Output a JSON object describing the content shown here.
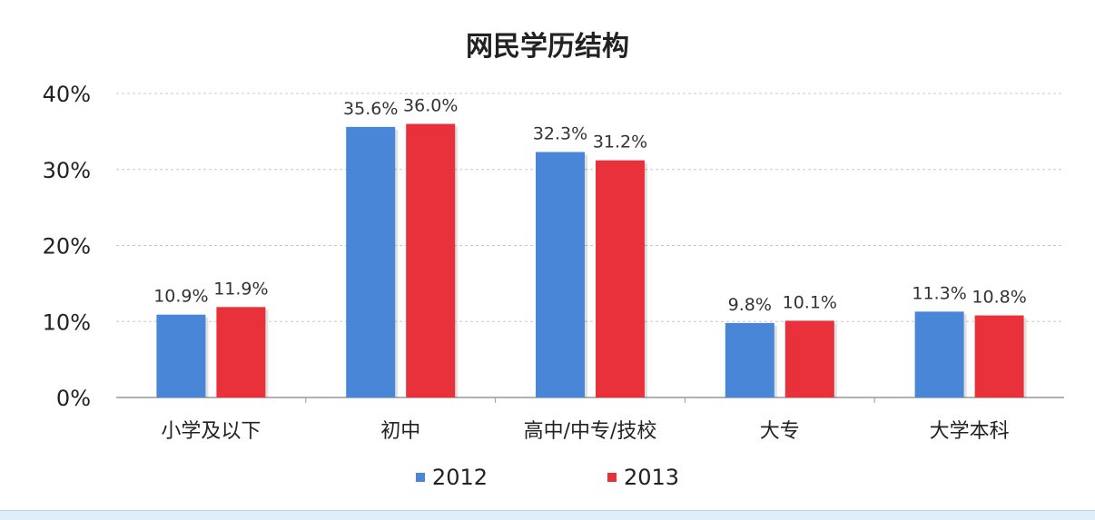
{
  "chart_data": {
    "type": "bar",
    "title": "网民学历结构",
    "categories": [
      "小学及以下",
      "初中",
      "高中/中专/技校",
      "大专",
      "大学本科"
    ],
    "series": [
      {
        "name": "2012",
        "values": [
          10.9,
          35.6,
          32.3,
          9.8,
          11.3
        ],
        "labels": [
          "10.9%",
          "35.6%",
          "32.3%",
          "9.8%",
          "11.3%"
        ],
        "color": "#4a86d8"
      },
      {
        "name": "2013",
        "values": [
          11.9,
          36.0,
          31.2,
          10.1,
          10.8
        ],
        "labels": [
          "11.9%",
          "36.0%",
          "31.2%",
          "10.1%",
          "10.8%"
        ],
        "color": "#e8313b"
      }
    ],
    "yticks": [
      "0%",
      "10%",
      "20%",
      "30%",
      "40%"
    ],
    "ylim": [
      0,
      40
    ],
    "grid": true,
    "legend_position": "bottom"
  }
}
